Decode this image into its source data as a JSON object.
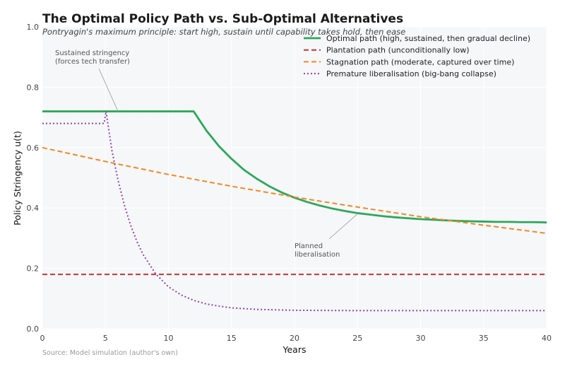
{
  "chart_data": {
    "type": "line",
    "title": "The Optimal Policy Path vs. Sub-Optimal Alternatives",
    "subtitle": "Pontryagin's maximum principle: start high, sustain until capability takes hold, then ease",
    "xlabel": "Years",
    "ylabel": "Policy Stringency u(t)",
    "xlim": [
      0,
      40
    ],
    "ylim": [
      0,
      1.0
    ],
    "xticks": [
      0,
      5,
      10,
      15,
      20,
      25,
      30,
      35,
      40
    ],
    "yticks": [
      "0.0",
      "0.2",
      "0.4",
      "0.6",
      "0.8",
      "1.0"
    ],
    "grid": true,
    "legend_position": "top-right",
    "source": "Source: Model simulation (author's own)",
    "series": [
      {
        "name": "Optimal path (high, sustained, then gradual decline)",
        "color": "#2ca85a",
        "style": "solid",
        "x": [
          0,
          12,
          13,
          14,
          15,
          16,
          17,
          18,
          19,
          20,
          21,
          22,
          23,
          24,
          25,
          26,
          27,
          28,
          29,
          30,
          31,
          32,
          33,
          34,
          35,
          36,
          37,
          38,
          39,
          40
        ],
        "y": [
          0.72,
          0.72,
          0.657,
          0.605,
          0.563,
          0.526,
          0.497,
          0.472,
          0.451,
          0.434,
          0.42,
          0.408,
          0.398,
          0.39,
          0.383,
          0.378,
          0.373,
          0.369,
          0.366,
          0.363,
          0.361,
          0.359,
          0.357,
          0.356,
          0.355,
          0.354,
          0.354,
          0.353,
          0.353,
          0.352
        ]
      },
      {
        "name": "Plantation path (unconditionally low)",
        "color": "#cc3333",
        "style": "dashed",
        "x": [
          0,
          40
        ],
        "y": [
          0.18,
          0.18
        ]
      },
      {
        "name": "Stagnation path (moderate, captured over time)",
        "color": "#f08a24",
        "style": "dashed",
        "x": [
          0,
          5,
          10,
          15,
          20,
          25,
          30,
          35,
          40
        ],
        "y": [
          0.6,
          0.554,
          0.511,
          0.472,
          0.436,
          0.403,
          0.371,
          0.343,
          0.316
        ]
      },
      {
        "name": "Premature liberalisation (big-bang collapse)",
        "color": "#8e44ad",
        "style": "dotted",
        "x": [
          0,
          4.9,
          5.05,
          5.5,
          6,
          6.5,
          7,
          7.5,
          8,
          9,
          10,
          11,
          12,
          13,
          14,
          15,
          17,
          20,
          25,
          30,
          35,
          40
        ],
        "y": [
          0.68,
          0.68,
          0.72,
          0.594,
          0.492,
          0.41,
          0.343,
          0.289,
          0.245,
          0.181,
          0.139,
          0.112,
          0.094,
          0.082,
          0.075,
          0.069,
          0.064,
          0.061,
          0.06,
          0.06,
          0.06,
          0.06
        ]
      }
    ],
    "annotations": [
      {
        "text": [
          "Sustained stringency",
          "(forces tech transfer)"
        ],
        "target": [
          6,
          0.72
        ]
      },
      {
        "text": [
          "Planned",
          "liberalisation"
        ],
        "target": [
          25,
          0.385
        ]
      }
    ]
  }
}
